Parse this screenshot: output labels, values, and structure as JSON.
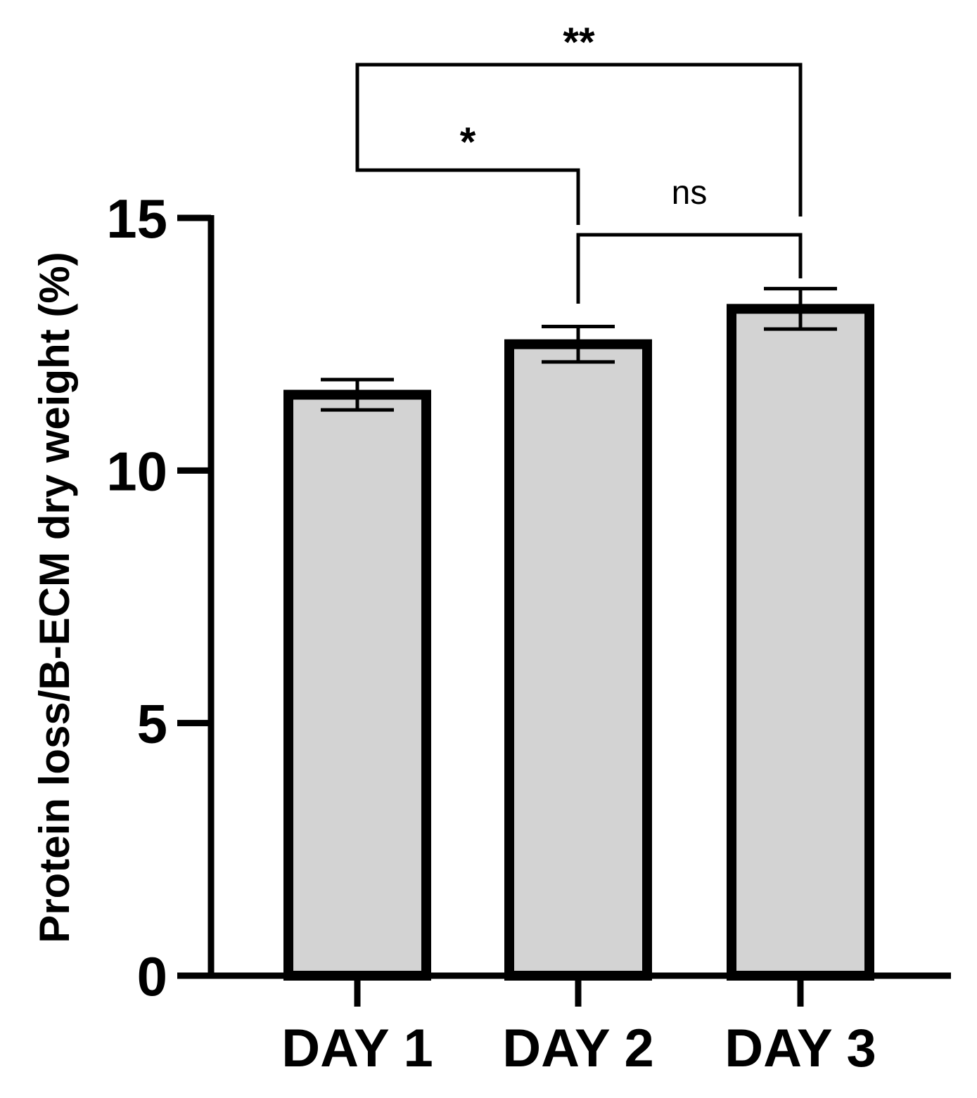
{
  "chart_data": {
    "type": "bar",
    "categories": [
      "DAY 1",
      "DAY 2",
      "DAY 3"
    ],
    "values": [
      11.5,
      12.5,
      13.2
    ],
    "error": [
      0.3,
      0.35,
      0.4
    ],
    "ylabel": "Protein loss/B-ECM dry weight (%)",
    "xlabel": "",
    "ylim": [
      0,
      15
    ],
    "yticks": [
      0,
      5,
      10,
      15
    ],
    "ytick_labels": [
      "0",
      "5",
      "10",
      "15"
    ],
    "grid": false,
    "bar_fill": "#d3d3d3",
    "bar_edge": "#000000",
    "significance": [
      {
        "from": 0,
        "to": 2,
        "label": "**"
      },
      {
        "from": 0,
        "to": 1,
        "label": "*"
      },
      {
        "from": 1,
        "to": 2,
        "label": "ns"
      }
    ]
  }
}
